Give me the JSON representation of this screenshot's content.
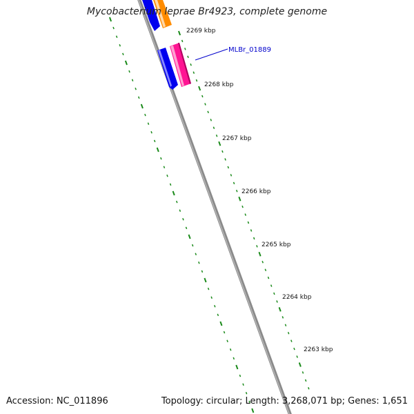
{
  "title": "Mycobacterium leprae Br4923, complete genome",
  "footer": {
    "accession": "Accession: NC_011896",
    "summary": "Topology: circular; Length: 3,268,071 bp; Genes: 1,651"
  },
  "ruler_labels": [
    "2269 kbp",
    "2268 kbp",
    "2267 kbp",
    "2266 kbp",
    "2265 kbp",
    "2264 kbp",
    "2263 kbp"
  ],
  "gene_label": "MLBr_01889",
  "colors": {
    "backbone": "#8a8a8a",
    "forward_gene": "#ff1493",
    "reverse_gene": "#0000ee",
    "neighbor_gene": "#ff8c00",
    "ticks": "#1a8a1a",
    "label_line": "#0000cc"
  }
}
